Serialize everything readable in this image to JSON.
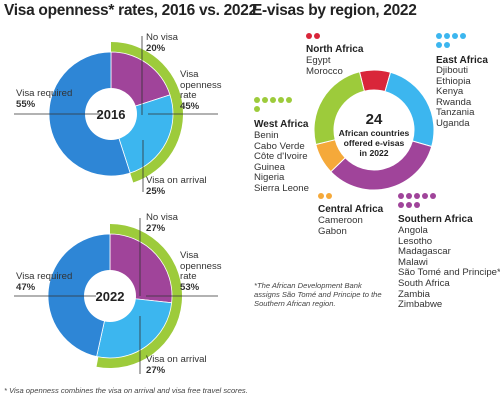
{
  "left_title": "Visa openness* rates, 2016 vs. 2022",
  "right_title": "E-visas by region, 2022",
  "footnote": "* Visa openness combines the visa on arrival and visa free travel scores.",
  "chart_data": [
    {
      "type": "pie",
      "center_label": "2016",
      "slices": [
        {
          "label": "Visa required",
          "value": 55,
          "pct": "55%",
          "color": "#2e86d6"
        },
        {
          "label": "No visa",
          "value": 20,
          "pct": "20%",
          "color": "#a0449a"
        },
        {
          "label": "Visa on arrival",
          "value": 25,
          "pct": "25%",
          "color": "#3cb6ef"
        }
      ],
      "outer_arc": {
        "label": "Visa openness rate",
        "value": 45,
        "pct": "45%",
        "color": "#9dcb3b"
      }
    },
    {
      "type": "pie",
      "center_label": "2022",
      "slices": [
        {
          "label": "Visa required",
          "value": 47,
          "pct": "47%",
          "color": "#2e86d6"
        },
        {
          "label": "No visa",
          "value": 27,
          "pct": "27%",
          "color": "#a0449a"
        },
        {
          "label": "Visa on arrival",
          "value": 27,
          "pct": "27%",
          "color": "#3cb6ef"
        }
      ],
      "outer_arc": {
        "label": "Visa openness rate",
        "value": 53,
        "pct": "53%",
        "color": "#9dcb3b"
      }
    },
    {
      "type": "pie",
      "center_value": "24",
      "center_text": "African countries offered e-visas in 2022",
      "slices": [
        {
          "region": "North Africa",
          "value": 2,
          "color": "#d9263a",
          "countries": [
            "Egypt",
            "Morocco"
          ]
        },
        {
          "region": "East Africa",
          "value": 6,
          "color": "#3cb6ef",
          "countries": [
            "Djibouti",
            "Ethiopia",
            "Kenya",
            "Rwanda",
            "Tanzania",
            "Uganda"
          ]
        },
        {
          "region": "Southern Africa",
          "value": 8,
          "color": "#a0449a",
          "countries": [
            "Angola",
            "Lesotho",
            "Madagascar",
            "Malawi",
            "São Tomé and Principe*",
            "South Africa",
            "Zambia",
            "Zimbabwe"
          ]
        },
        {
          "region": "Central Africa",
          "value": 2,
          "color": "#f5a93a",
          "countries": [
            "Cameroon",
            "Gabon"
          ]
        },
        {
          "region": "West Africa",
          "value": 6,
          "color": "#9dcb3b",
          "countries": [
            "Benin",
            "Cabo Verde",
            "Côte d'Ivoire",
            "Guinea",
            "Nigeria",
            "Sierra Leone"
          ]
        }
      ],
      "note": "*The African Development Bank assigns São Tomé and Principe to the Southern African region."
    }
  ]
}
